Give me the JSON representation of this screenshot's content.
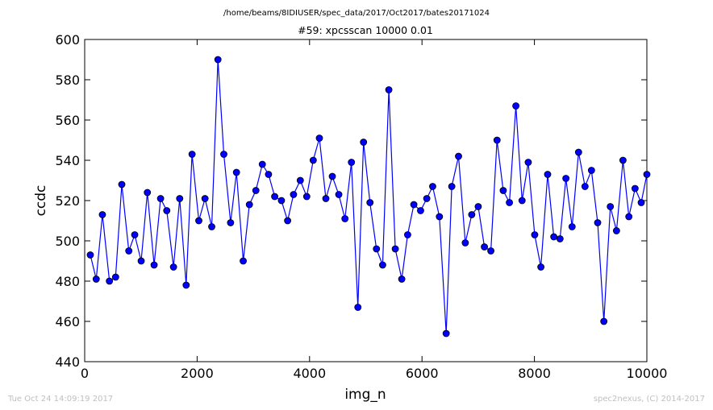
{
  "chart_data": {
    "type": "line",
    "suptitle": "/home/beams/8IDIUSER/spec_data/2017/Oct2017/bates20171024",
    "title": "#59: xpcsscan 10000 0.01",
    "xlabel": "img_n",
    "ylabel": "ccdc",
    "xlim": [
      0,
      10000
    ],
    "ylim": [
      440,
      600
    ],
    "xticks": [
      0,
      2000,
      4000,
      6000,
      8000,
      10000
    ],
    "yticks": [
      440,
      460,
      480,
      500,
      520,
      540,
      560,
      580,
      600
    ],
    "grid": false,
    "series": [
      {
        "color": "#0000ff",
        "marker": "circle",
        "x": [
          100,
          205,
          315,
          440,
          550,
          660,
          785,
          890,
          1005,
          1115,
          1235,
          1350,
          1460,
          1580,
          1690,
          1805,
          1910,
          2030,
          2140,
          2260,
          2370,
          2475,
          2595,
          2700,
          2820,
          2930,
          3045,
          3160,
          3270,
          3380,
          3500,
          3610,
          3715,
          3835,
          3950,
          4065,
          4175,
          4290,
          4405,
          4520,
          4630,
          4745,
          4860,
          4960,
          5075,
          5190,
          5300,
          5410,
          5525,
          5640,
          5745,
          5855,
          5975,
          6085,
          6190,
          6310,
          6430,
          6530,
          6650,
          6770,
          6885,
          7000,
          7110,
          7225,
          7335,
          7445,
          7555,
          7670,
          7780,
          7890,
          8005,
          8115,
          8235,
          8345,
          8455,
          8560,
          8670,
          8785,
          8900,
          9015,
          9125,
          9235,
          9350,
          9460,
          9575,
          9680,
          9790,
          9900,
          10000
        ],
        "y": [
          493,
          481,
          513,
          480,
          482,
          528,
          495,
          503,
          490,
          524,
          488,
          521,
          515,
          487,
          521,
          478,
          543,
          510,
          521,
          507,
          590,
          543,
          509,
          534,
          490,
          518,
          525,
          538,
          533,
          522,
          520,
          510,
          523,
          530,
          522,
          540,
          551,
          521,
          532,
          523,
          511,
          539,
          467,
          549,
          519,
          496,
          488,
          575,
          496,
          481,
          503,
          518,
          515,
          521,
          527,
          512,
          454,
          527,
          542,
          499,
          513,
          517,
          497,
          495,
          550,
          525,
          519,
          567,
          520,
          539,
          503,
          487,
          533,
          502,
          501,
          531,
          507,
          544,
          527,
          535,
          509,
          460,
          517,
          505,
          540,
          512,
          526,
          519,
          533
        ]
      }
    ]
  },
  "footer": {
    "left": "Tue Oct 24 14:09:19 2017",
    "right": "spec2nexus, (C) 2014-2017"
  }
}
